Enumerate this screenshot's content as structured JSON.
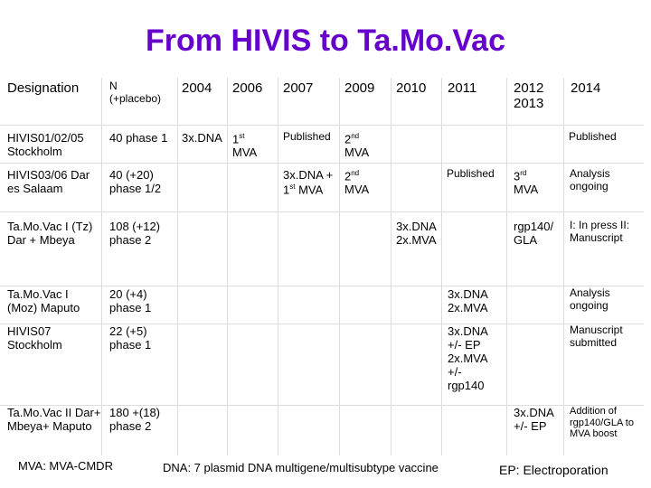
{
  "title": "From HIVIS to Ta.Mo.Vac",
  "table": {
    "headers": {
      "designation": "Designation",
      "n": "N (+placebo)",
      "y2004": "2004",
      "y2006": "2006",
      "y2007": "2007",
      "y2009": "2009",
      "y2010": "2010",
      "y2011": "2011",
      "y2012_2013": "2012 2013",
      "y2014": "2014"
    },
    "rows": [
      {
        "designation": "HIVIS01/02/05 Stockholm",
        "n": "40 phase 1",
        "c2004": "3x.DNA",
        "c2006": "1st MVA",
        "c2007": "Published",
        "c2009": "2nd MVA",
        "c2014": "Published"
      },
      {
        "designation": "HIVIS03/06 Dar es Salaam",
        "n": "40 (+20) phase 1/2",
        "c2007": "3x.DNA + 1st MVA",
        "c2009": "2nd MVA",
        "c2011": "Published",
        "c2012": "3rd MVA",
        "c2014": "Analysis ongoing"
      },
      {
        "designation": "Ta.Mo.Vac I (Tz) Dar + Mbeya",
        "n": "108 (+12) phase 2",
        "c2010": "3x.DNA 2x.MVA",
        "c2012": "rgp140/ GLA",
        "c2014": "I: In press II: Manuscript"
      },
      {
        "designation": "Ta.Mo.Vac I (Moz) Maputo",
        "n": "20 (+4) phase 1",
        "c2011": "3x.DNA 2x.MVA",
        "c2014": "Analysis ongoing"
      },
      {
        "designation": "HIVIS07 Stockholm",
        "n": "22 (+5) phase 1",
        "c2011": "3x.DNA +/- EP 2x.MVA +/- rgp140",
        "c2014": "Manuscript submitted"
      },
      {
        "designation": "Ta.Mo.Vac II Dar+ Mbeya+ Maputo",
        "n": "180 +(18) phase 2",
        "c2012": "3x.DNA +/- EP",
        "c2014": "Addition of rgp140/GLA to MVA boost"
      }
    ]
  },
  "footer": {
    "mva": "MVA: MVA-CMDR",
    "dna": "DNA: 7 plasmid DNA multigene/multisubtype vaccine",
    "ep": "EP: Electroporation"
  }
}
